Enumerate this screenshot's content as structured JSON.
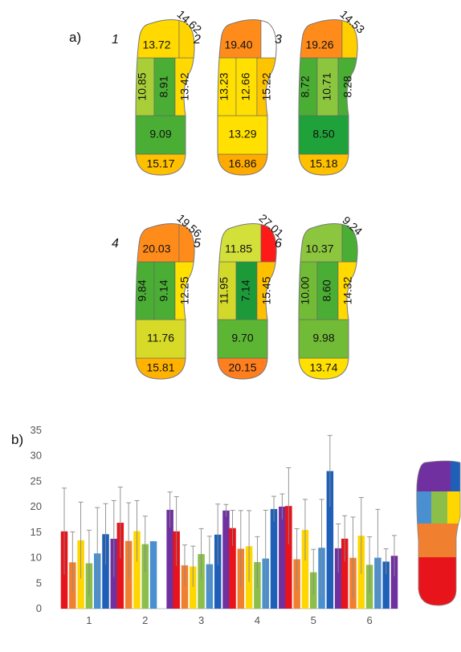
{
  "figure": {
    "panel_a_label": "a)",
    "panel_b_label": "b)"
  },
  "chart_data": [
    {
      "type": "heatmap",
      "panel": "a)",
      "zones": [
        "heel",
        "midfoot",
        "lateral forefoot",
        "middle forefoot",
        "medial forefoot",
        "lesser toes",
        "hallux"
      ],
      "footprints": [
        {
          "label": "1",
          "values": {
            "heel": "15.17",
            "midfoot": "9.09",
            "lateral_forefoot": "10.85",
            "middle_forefoot": "8.91",
            "medial_forefoot": "13.42",
            "lesser_toes": "13.72",
            "hallux": "14.62"
          },
          "colors": {
            "heel": "#ffc000",
            "midfoot": "#4aad34",
            "lateral_forefoot": "#a9cf38",
            "middle_forefoot": "#4aad34",
            "medial_forefoot": "#ffd900",
            "lesser_toes": "#ffd900",
            "hallux": "#ffd400"
          }
        },
        {
          "label": "2",
          "values": {
            "heel": "16.86",
            "midfoot": "13.29",
            "lateral_forefoot": "13.23",
            "middle_forefoot": "12.66",
            "medial_forefoot": "15.22",
            "lesser_toes": "19.40",
            "hallux": ""
          },
          "colors": {
            "heel": "#ffaa00",
            "midfoot": "#ffe000",
            "lateral_forefoot": "#ffe000",
            "middle_forefoot": "#ffe000",
            "medial_forefoot": "#ffc400",
            "lesser_toes": "#ff8c1a",
            "hallux": "#ffffff"
          }
        },
        {
          "label": "3",
          "values": {
            "heel": "15.18",
            "midfoot": "8.50",
            "lateral_forefoot": "8.72",
            "middle_forefoot": "10.71",
            "medial_forefoot": "8.28",
            "lesser_toes": "19.26",
            "hallux": "14.53"
          },
          "colors": {
            "heel": "#ffc000",
            "midfoot": "#1fa23a",
            "lateral_forefoot": "#4aad34",
            "middle_forefoot": "#8cc63f",
            "medial_forefoot": "#4aad34",
            "lesser_toes": "#ff8c1a",
            "hallux": "#ffcf00"
          }
        },
        {
          "label": "4",
          "values": {
            "heel": "15.81",
            "midfoot": "11.76",
            "lateral_forefoot": "9.84",
            "middle_forefoot": "9.14",
            "medial_forefoot": "12.25",
            "lesser_toes": "20.03",
            "hallux": "19.56"
          },
          "colors": {
            "heel": "#ffb300",
            "midfoot": "#d7db28",
            "lateral_forefoot": "#4aad34",
            "middle_forefoot": "#4aad34",
            "medial_forefoot": "#ffe000",
            "lesser_toes": "#ff8c1a",
            "hallux": "#ff8c1a"
          }
        },
        {
          "label": "5",
          "values": {
            "heel": "20.15",
            "midfoot": "9.70",
            "lateral_forefoot": "11.95",
            "middle_forefoot": "7.14",
            "medial_forefoot": "15.45",
            "lesser_toes": "11.85",
            "hallux": "27.01"
          },
          "colors": {
            "heel": "#ff7f1f",
            "midfoot": "#5db534",
            "lateral_forefoot": "#d3d92b",
            "middle_forefoot": "#1c9a3a",
            "medial_forefoot": "#ffc000",
            "lesser_toes": "#d3e03a",
            "hallux": "#ff1a1a"
          }
        },
        {
          "label": "6",
          "values": {
            "heel": "13.74",
            "midfoot": "9.98",
            "lateral_forefoot": "10.00",
            "middle_forefoot": "8.60",
            "medial_forefoot": "14.32",
            "lesser_toes": "10.37",
            "hallux": "9.24"
          },
          "colors": {
            "heel": "#ffe000",
            "midfoot": "#71bb36",
            "lateral_forefoot": "#71bb36",
            "middle_forefoot": "#4aad34",
            "medial_forefoot": "#ffd900",
            "lesser_toes": "#8cc63f",
            "hallux": "#4aad34"
          }
        }
      ]
    },
    {
      "type": "bar",
      "panel": "b)",
      "categories": [
        "1",
        "2",
        "3",
        "4",
        "5",
        "6"
      ],
      "ylim": [
        0,
        35
      ],
      "yticks": [
        "0",
        "5",
        "10",
        "15",
        "20",
        "25",
        "30",
        "35"
      ],
      "grid": false,
      "error_bars": true,
      "series": [
        {
          "color": "#e8141c",
          "values": [
            15.17,
            16.86,
            15.18,
            15.81,
            20.15,
            13.74
          ],
          "err": [
            8.5,
            7.0,
            6.8,
            3.5,
            7.5,
            4.5
          ]
        },
        {
          "color": "#f08030",
          "values": [
            9.09,
            13.29,
            8.5,
            11.76,
            9.7,
            9.98
          ],
          "err": [
            6.0,
            7.5,
            4.0,
            7.5,
            6.0,
            8.0
          ]
        },
        {
          "color": "#ffd600",
          "values": [
            13.42,
            15.22,
            8.28,
            12.25,
            15.45,
            14.32
          ],
          "err": [
            7.5,
            6.0,
            4.0,
            7.0,
            6.0,
            7.5
          ]
        },
        {
          "color": "#8bbf4a",
          "values": [
            8.91,
            12.66,
            10.71,
            9.14,
            7.14,
            8.6
          ],
          "err": [
            6.5,
            5.5,
            5.0,
            5.0,
            4.5,
            5.5
          ]
        },
        {
          "color": "#4a8fd0",
          "values": [
            10.85,
            13.23,
            8.72,
            9.84,
            11.95,
            10.0
          ],
          "err": [
            9.0,
            0,
            5.5,
            9.5,
            9.5,
            9.5
          ]
        },
        {
          "color": "#1f5fb8",
          "values": [
            14.62,
            null,
            14.53,
            19.56,
            27.01,
            9.24
          ],
          "err": [
            6.0,
            0,
            6.0,
            2.5,
            7.0,
            2.5
          ]
        },
        {
          "color": "#7030a0",
          "values": [
            13.72,
            19.4,
            19.26,
            20.03,
            11.85,
            10.37
          ],
          "err": [
            7.5,
            3.5,
            1.2,
            2.5,
            4.8,
            4.0
          ]
        }
      ]
    }
  ]
}
